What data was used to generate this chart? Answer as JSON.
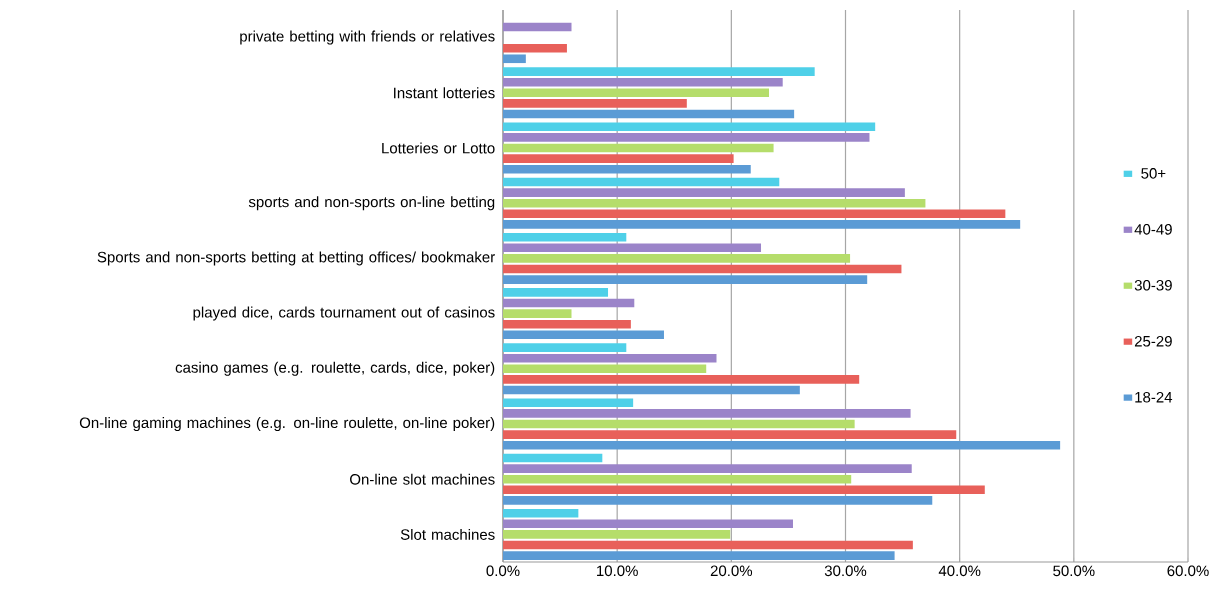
{
  "chart_data": {
    "type": "bar",
    "orientation": "horizontal",
    "categories": [
      "private betting with friends or relatives",
      "Instant lotteries",
      "Lotteries or Lotto",
      "sports and non-sports on-line betting",
      "Sports and non-sports betting at betting offices/ bookmaker",
      "played dice, cards tournament out of casinos",
      "casino games (e.g. roulette, cards, dice, poker)",
      "On-line gaming machines (e.g. on-line roulette, on-line poker)",
      "On-line slot machines",
      "Slot machines"
    ],
    "series": [
      {
        "name": "18-24",
        "color": "#5b9bd5",
        "values": [
          2.0,
          25.5,
          21.7,
          45.3,
          31.9,
          14.1,
          26.0,
          48.8,
          37.6,
          34.3
        ]
      },
      {
        "name": "25-29",
        "color": "#e8605a",
        "values": [
          5.6,
          16.1,
          20.2,
          44.0,
          34.9,
          11.2,
          31.2,
          39.7,
          42.2,
          35.9
        ]
      },
      {
        "name": "30-39",
        "color": "#b5dd6b",
        "values": [
          null,
          23.3,
          23.7,
          37.0,
          30.4,
          6.0,
          17.8,
          30.8,
          30.5,
          19.9
        ]
      },
      {
        "name": "40-49",
        "color": "#9b84c9",
        "values": [
          6.0,
          24.5,
          32.1,
          35.2,
          22.6,
          11.5,
          18.7,
          35.7,
          35.8,
          25.4
        ]
      },
      {
        "name": "50+",
        "color": "#4fd0e8",
        "values": [
          null,
          27.3,
          32.6,
          24.2,
          10.8,
          9.2,
          10.8,
          11.4,
          8.7,
          6.6
        ]
      }
    ],
    "xlim": [
      0,
      60
    ],
    "xticks": [
      {
        "value": 0,
        "label": "0.0%"
      },
      {
        "value": 10,
        "label": "10.0%"
      },
      {
        "value": 20,
        "label": "20.0%"
      },
      {
        "value": 30,
        "label": "30.0%"
      },
      {
        "value": 40,
        "label": "40.0%"
      },
      {
        "value": 50,
        "label": "50.0%"
      },
      {
        "value": 60,
        "label": "60.0%"
      }
    ],
    "grid": "x",
    "legend": "right"
  }
}
